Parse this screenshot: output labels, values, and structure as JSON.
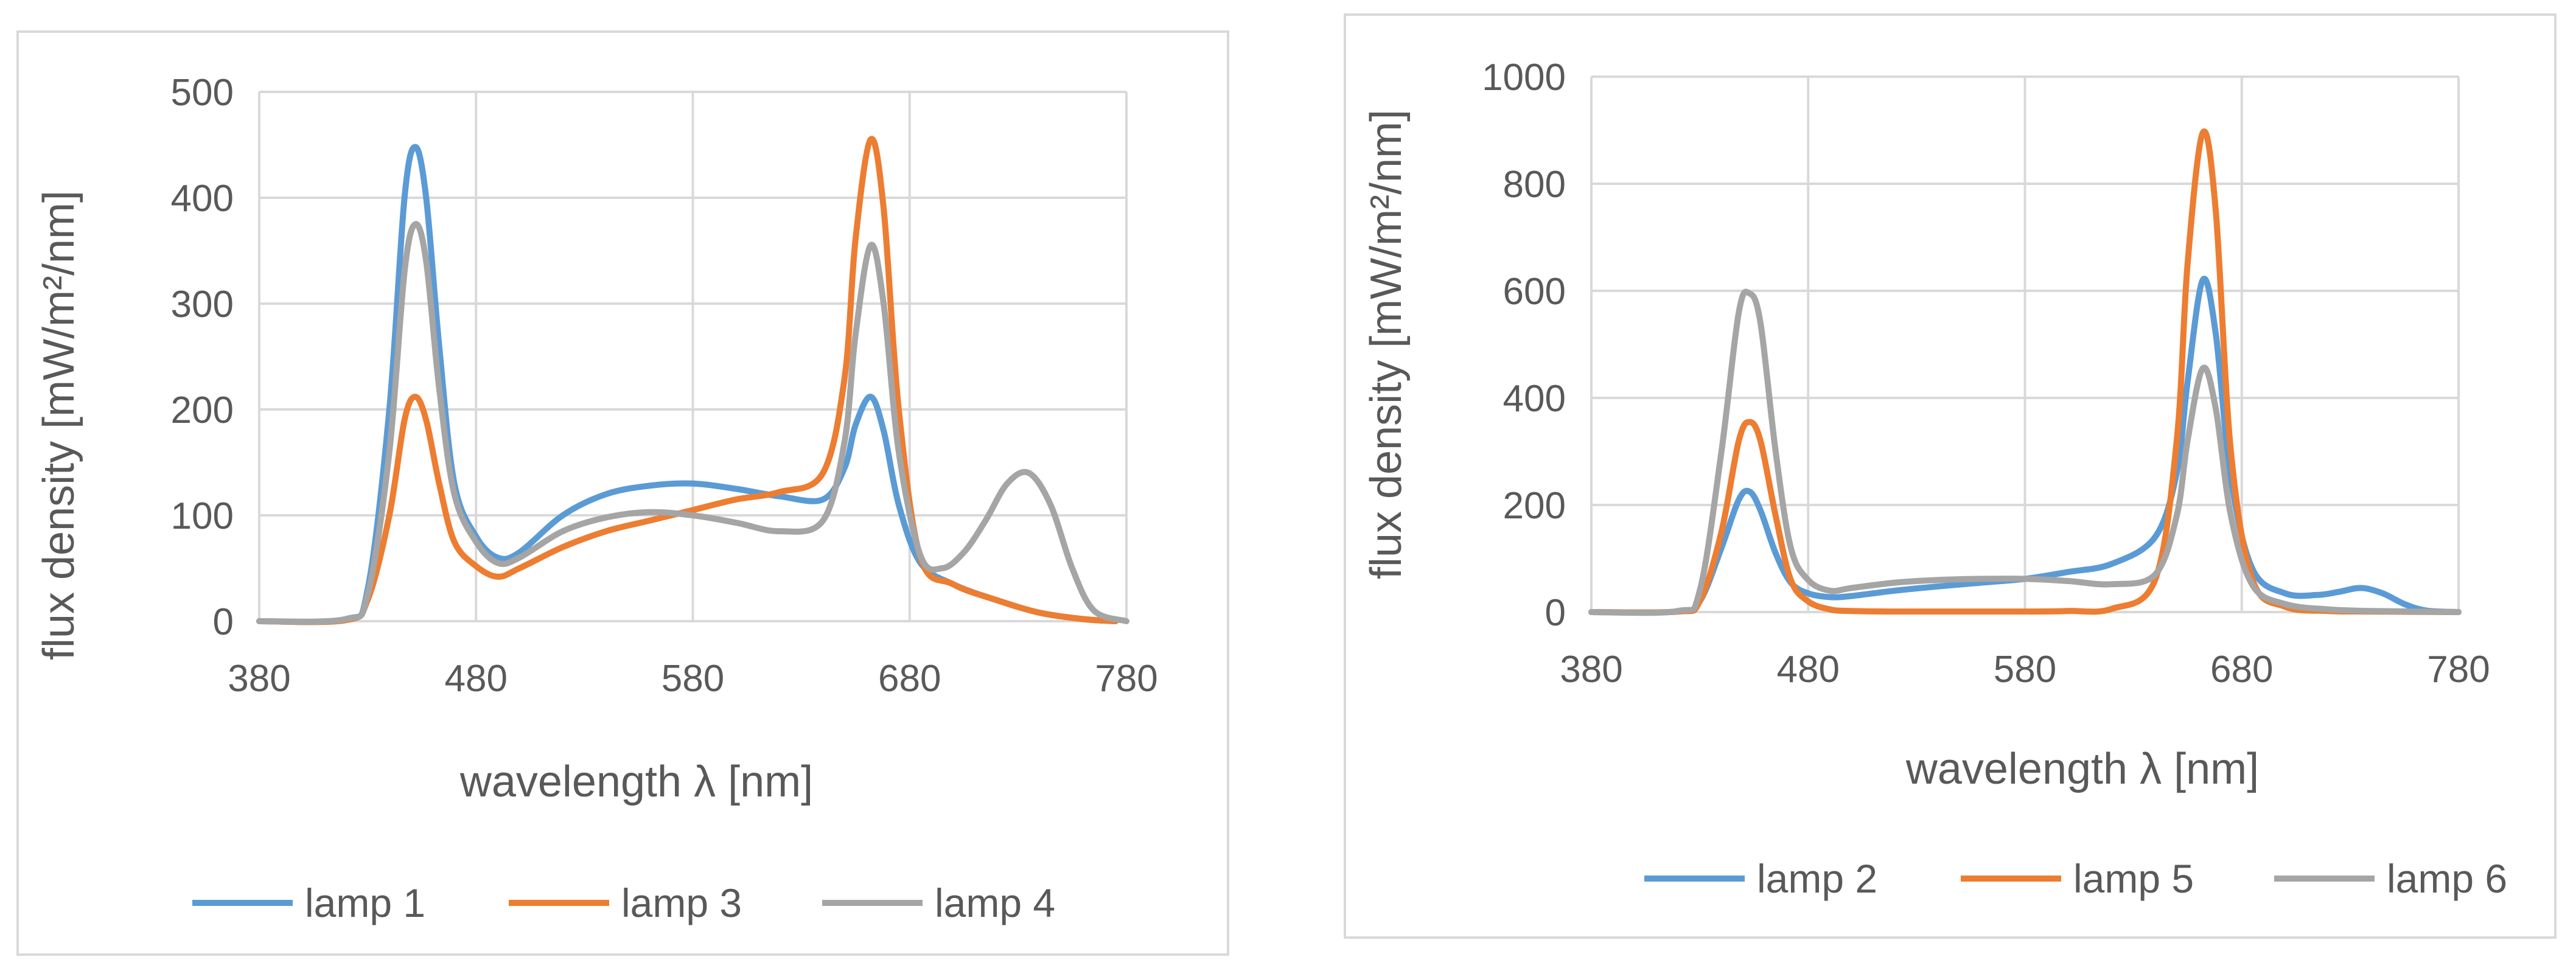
{
  "colors": {
    "blue": "#5B9BD5",
    "orange": "#ED7D31",
    "gray": "#A5A5A5"
  },
  "chart_data": [
    {
      "type": "line",
      "xlabel": "wavelength λ [nm]",
      "ylabel": "flux density [mW/m²/nm]",
      "xlim": [
        380,
        780
      ],
      "ylim": [
        0,
        500
      ],
      "xticks": [
        380,
        480,
        580,
        680,
        780
      ],
      "yticks": [
        0,
        100,
        200,
        300,
        400,
        500
      ],
      "grid": true,
      "legend": "bottom",
      "series": [
        {
          "name": "lamp 1",
          "color": "#5B9BD5",
          "x": [
            380,
            420,
            430,
            440,
            447,
            452,
            457,
            463,
            470,
            480,
            490,
            500,
            520,
            540,
            560,
            580,
            600,
            620,
            640,
            650,
            655,
            662,
            668,
            675,
            685,
            700,
            720,
            740,
            760,
            775
          ],
          "y": [
            0,
            2,
            30,
            200,
            400,
            448,
            400,
            260,
            130,
            80,
            60,
            65,
            100,
            120,
            128,
            130,
            125,
            118,
            115,
            145,
            185,
            212,
            180,
            110,
            55,
            35,
            20,
            8,
            2,
            0
          ]
        },
        {
          "name": "lamp 3",
          "color": "#ED7D31",
          "x": [
            380,
            420,
            430,
            440,
            447,
            452,
            457,
            463,
            470,
            480,
            490,
            500,
            520,
            540,
            560,
            580,
            600,
            620,
            640,
            650,
            655,
            662,
            668,
            675,
            685,
            700,
            720,
            740,
            760,
            775
          ],
          "y": [
            0,
            1,
            20,
            100,
            190,
            212,
            190,
            130,
            75,
            52,
            42,
            50,
            70,
            85,
            95,
            105,
            115,
            122,
            140,
            230,
            360,
            455,
            390,
            200,
            60,
            35,
            20,
            8,
            2,
            0
          ]
        },
        {
          "name": "lamp 4",
          "color": "#A5A5A5",
          "x": [
            380,
            420,
            430,
            440,
            447,
            452,
            457,
            463,
            470,
            480,
            490,
            500,
            520,
            540,
            560,
            580,
            600,
            620,
            640,
            650,
            655,
            662,
            668,
            675,
            685,
            695,
            705,
            715,
            725,
            735,
            745,
            755,
            765,
            780
          ],
          "y": [
            0,
            2,
            25,
            160,
            330,
            375,
            340,
            220,
            120,
            75,
            55,
            60,
            85,
            98,
            103,
            100,
            93,
            85,
            95,
            170,
            270,
            355,
            300,
            160,
            62,
            50,
            65,
            95,
            130,
            140,
            110,
            50,
            10,
            0
          ]
        }
      ]
    },
    {
      "type": "line",
      "xlabel": "wavelength λ [nm]",
      "ylabel": "flux density [mW/m²/nm]",
      "xlim": [
        380,
        780
      ],
      "ylim": [
        0,
        1000
      ],
      "xticks": [
        380,
        480,
        580,
        680,
        780
      ],
      "yticks": [
        0,
        200,
        400,
        600,
        800,
        1000
      ],
      "grid": true,
      "legend": "bottom",
      "series": [
        {
          "name": "lamp 2",
          "color": "#5B9BD5",
          "x": [
            380,
            420,
            430,
            440,
            448,
            453,
            458,
            465,
            472,
            480,
            490,
            500,
            520,
            540,
            560,
            580,
            600,
            620,
            640,
            650,
            655,
            662,
            668,
            675,
            685,
            700,
            715,
            725,
            735,
            745,
            755,
            765,
            780
          ],
          "y": [
            0,
            1,
            20,
            120,
            210,
            225,
            190,
            110,
            55,
            35,
            28,
            30,
            40,
            48,
            55,
            62,
            75,
            90,
            140,
            260,
            430,
            620,
            520,
            250,
            80,
            35,
            32,
            38,
            45,
            35,
            15,
            3,
            0
          ]
        },
        {
          "name": "lamp 5",
          "color": "#ED7D31",
          "x": [
            380,
            420,
            430,
            440,
            448,
            453,
            458,
            465,
            472,
            480,
            490,
            500,
            520,
            540,
            560,
            580,
            600,
            620,
            640,
            650,
            655,
            662,
            668,
            675,
            685,
            700,
            720,
            740,
            780
          ],
          "y": [
            0,
            1,
            20,
            150,
            320,
            355,
            320,
            180,
            60,
            20,
            5,
            2,
            1,
            1,
            1,
            1,
            2,
            6,
            60,
            320,
            650,
            895,
            750,
            300,
            60,
            10,
            2,
            1,
            0
          ]
        },
        {
          "name": "lamp 6",
          "color": "#A5A5A5",
          "x": [
            380,
            420,
            430,
            440,
            448,
            453,
            458,
            465,
            472,
            480,
            490,
            500,
            520,
            540,
            560,
            580,
            600,
            620,
            640,
            650,
            655,
            662,
            668,
            675,
            685,
            700,
            720,
            740,
            780
          ],
          "y": [
            0,
            2,
            40,
            300,
            560,
            595,
            540,
            300,
            120,
            60,
            40,
            45,
            55,
            60,
            62,
            62,
            58,
            52,
            70,
            180,
            320,
            455,
            380,
            180,
            50,
            15,
            5,
            2,
            0
          ]
        }
      ]
    }
  ]
}
